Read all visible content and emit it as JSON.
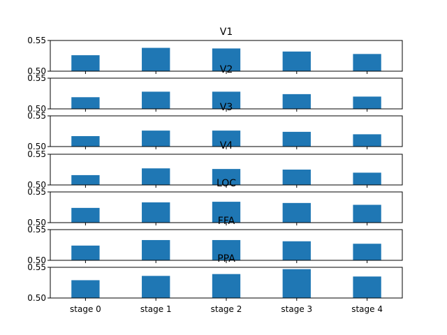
{
  "chart_data": {
    "type": "bar",
    "layout": "stacked-subplots",
    "bar_color": "#1f77b4",
    "categories": [
      "stage 0",
      "stage 1",
      "stage 2",
      "stage 3",
      "stage 4"
    ],
    "ylim": [
      0.5,
      0.55
    ],
    "yticks": [
      "0.50",
      "0.55"
    ],
    "grid": false,
    "panels": [
      {
        "title": "V1",
        "values": [
          0.526,
          0.538,
          0.537,
          0.532,
          0.528
        ]
      },
      {
        "title": "V2",
        "values": [
          0.519,
          0.528,
          0.528,
          0.524,
          0.52
        ]
      },
      {
        "title": "V3",
        "values": [
          0.517,
          0.526,
          0.526,
          0.524,
          0.52
        ]
      },
      {
        "title": "V4",
        "values": [
          0.516,
          0.527,
          0.526,
          0.525,
          0.52
        ]
      },
      {
        "title": "LOC",
        "values": [
          0.524,
          0.533,
          0.534,
          0.532,
          0.529
        ]
      },
      {
        "title": "FFA",
        "values": [
          0.524,
          0.533,
          0.533,
          0.531,
          0.527
        ]
      },
      {
        "title": "PPA",
        "values": [
          0.529,
          0.536,
          0.539,
          0.547,
          0.535
        ]
      }
    ]
  }
}
